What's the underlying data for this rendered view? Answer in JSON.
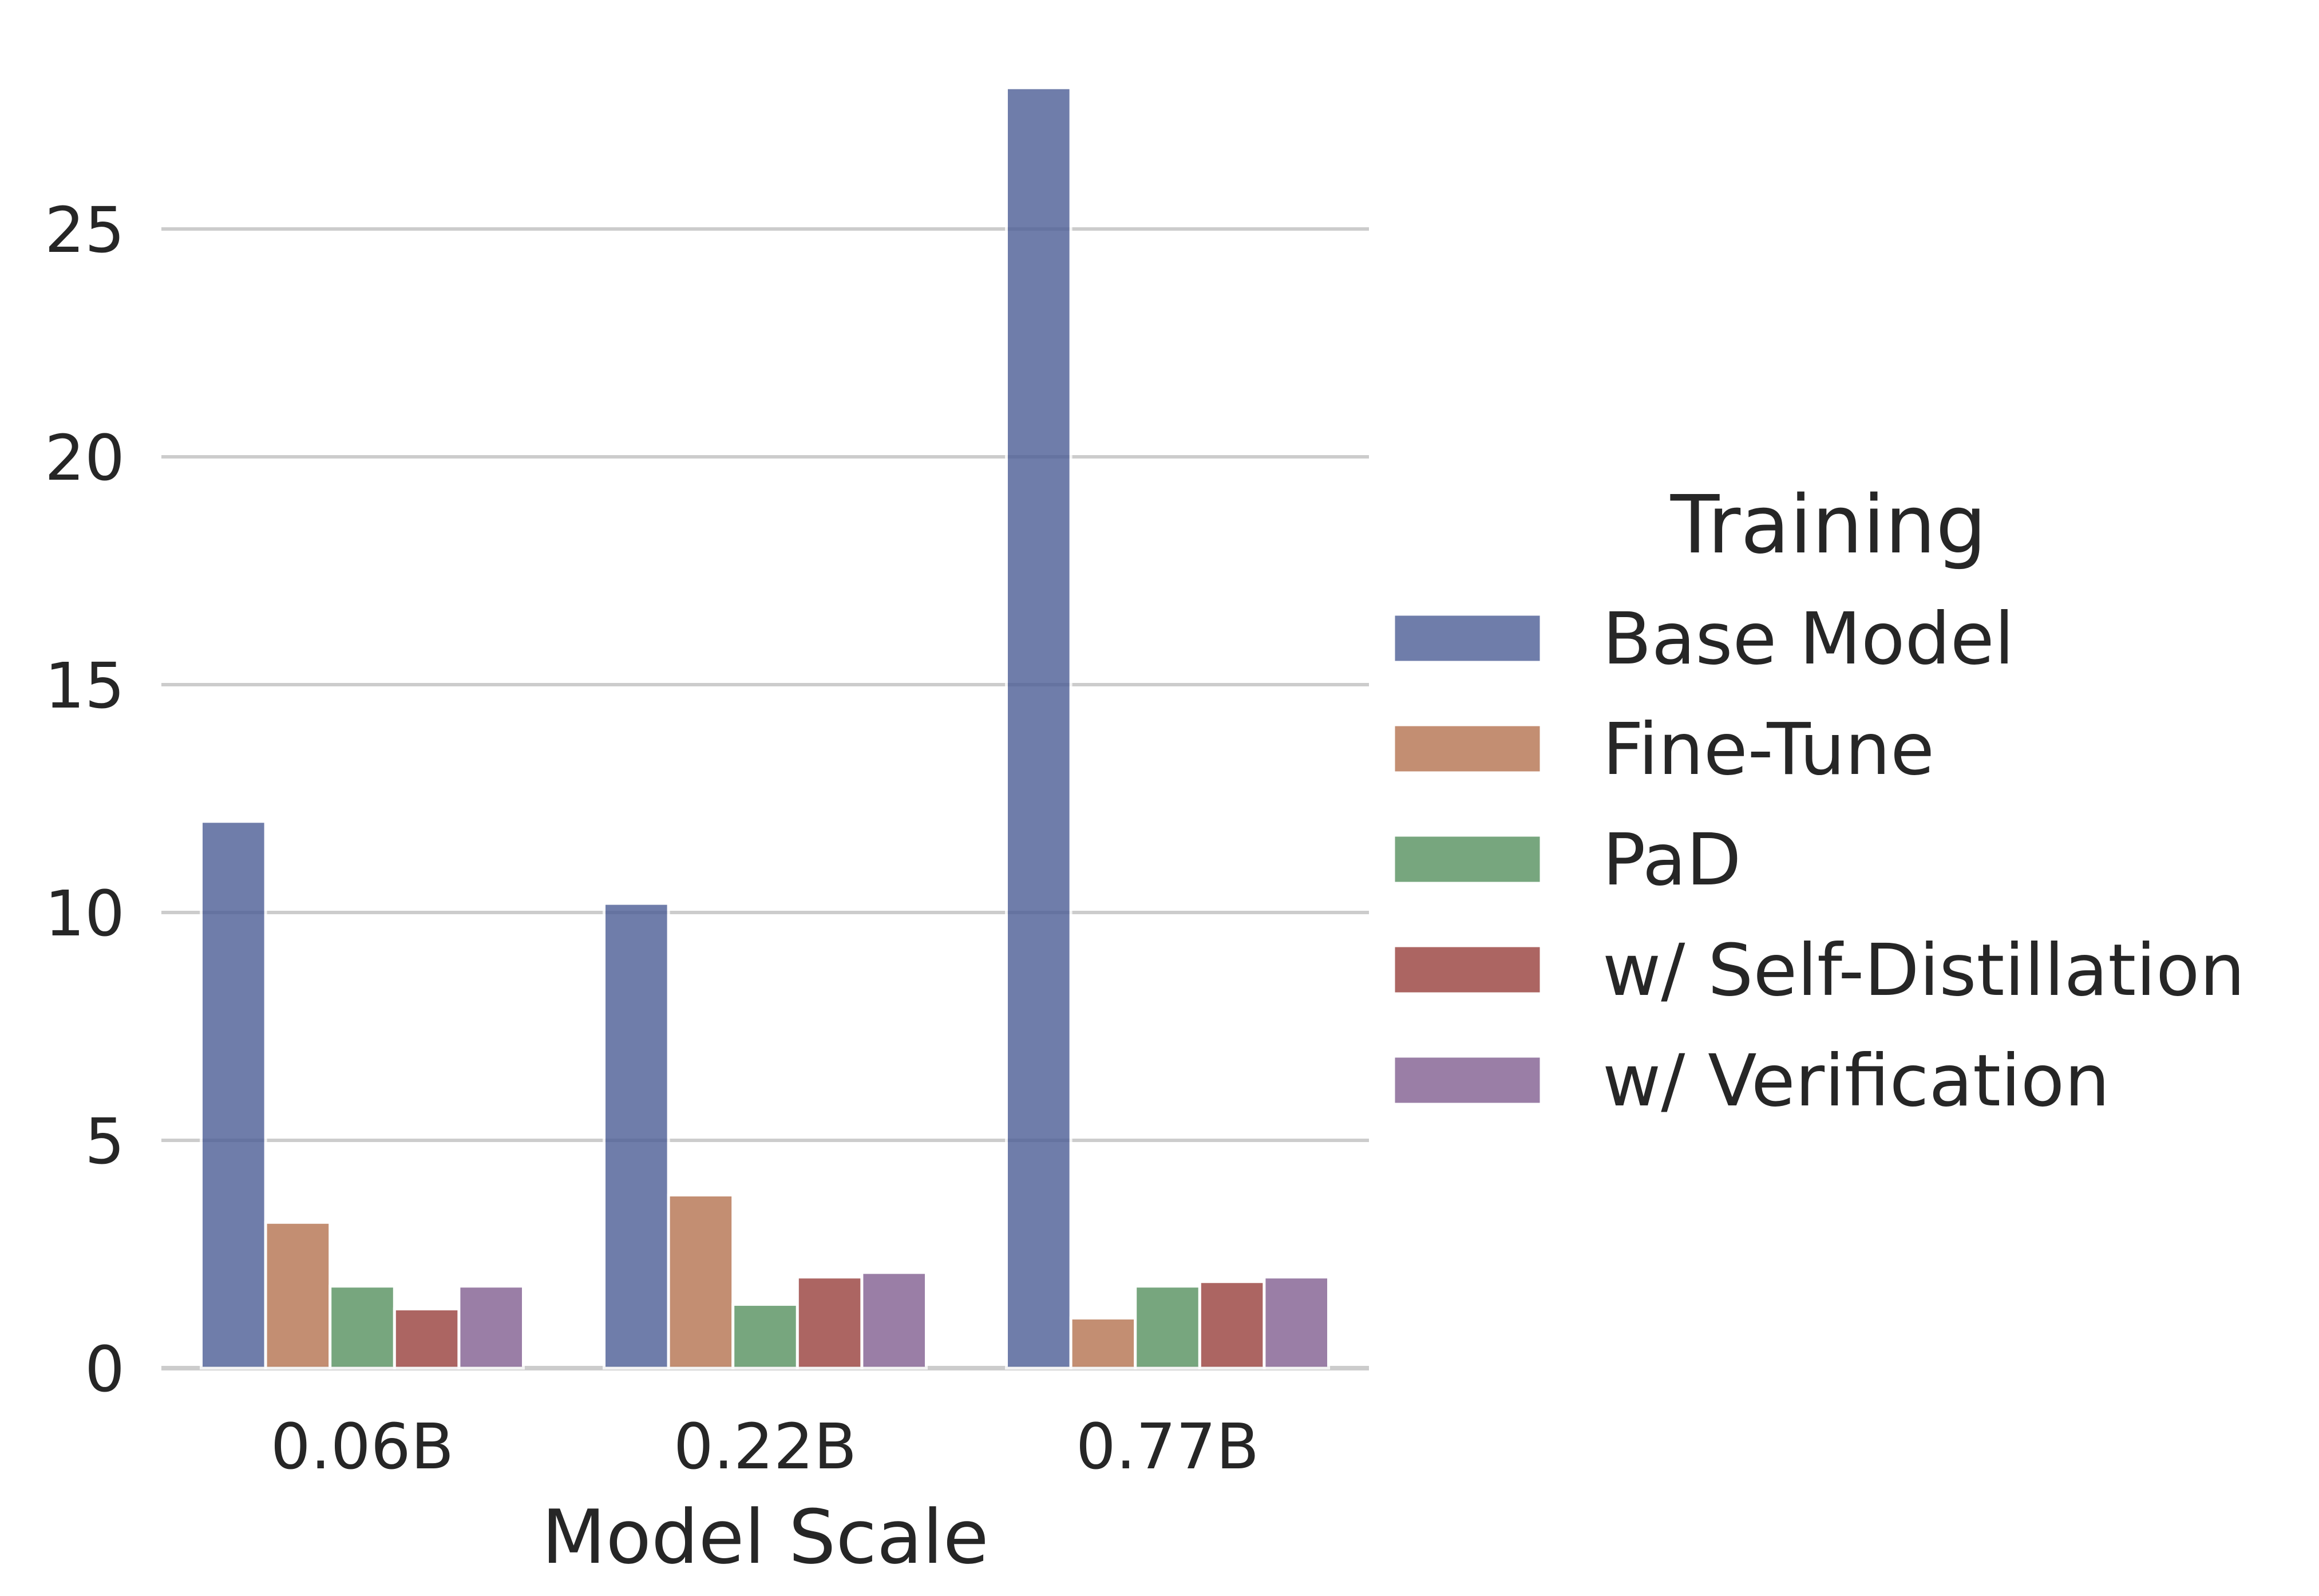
{
  "chart_data": {
    "type": "bar",
    "categories": [
      "0.06B",
      "0.22B",
      "0.77B"
    ],
    "series": [
      {
        "name": "Base Model",
        "values": [
          12.0,
          10.2,
          28.1
        ],
        "color": "#4c5d96"
      },
      {
        "name": "Fine-Tune",
        "values": [
          3.2,
          3.8,
          1.1
        ],
        "color": "#b5734f"
      },
      {
        "name": "PaD",
        "values": [
          1.8,
          1.4,
          1.8
        ],
        "color": "#56905e"
      },
      {
        "name": "w/ Self-Distillation",
        "values": [
          1.3,
          2.0,
          1.9
        ],
        "color": "#983f3c"
      },
      {
        "name": "w/ Verification",
        "values": [
          1.8,
          2.1,
          2.0
        ],
        "color": "#825e91"
      }
    ],
    "title": "",
    "xlabel": "Model Scale",
    "ylabel": "",
    "ylim": [
      0,
      28.1
    ],
    "yticks": [
      0,
      5,
      10,
      15,
      20,
      25
    ],
    "ytick_labels": [
      "0",
      "5",
      "10",
      "15",
      "20",
      "25"
    ],
    "grid": true,
    "legend": {
      "title": "Training",
      "placement": "right"
    }
  }
}
